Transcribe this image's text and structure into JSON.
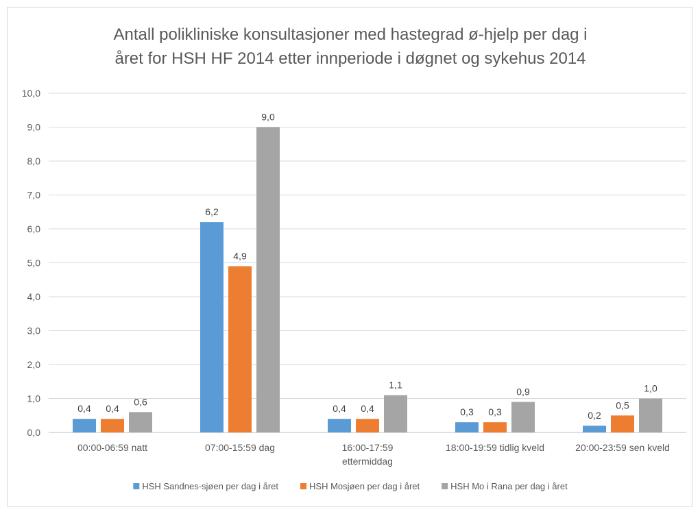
{
  "chart_data": {
    "type": "bar",
    "title_lines": [
      "Antall polikliniske konsultasjoner med hastegrad ø-hjelp per dag i",
      "året for HSH HF 2014 etter innperiode i døgnet og sykehus 2014"
    ],
    "categories": [
      [
        "00:00-06:59 natt"
      ],
      [
        "07:00-15:59 dag"
      ],
      [
        "16:00-17:59",
        "ettermiddag"
      ],
      [
        "18:00-19:59 tidlig kveld"
      ],
      [
        "20:00-23:59 sen kveld"
      ]
    ],
    "series": [
      {
        "name": "HSH Sandnes-sjøen per dag i året",
        "color": "#5b9bd5",
        "values": [
          0.4,
          6.2,
          0.4,
          0.3,
          0.2
        ],
        "labels": [
          "0,4",
          "6,2",
          "0,4",
          "0,3",
          "0,2"
        ]
      },
      {
        "name": "HSH Mosjøen per dag i året",
        "color": "#ed7d31",
        "values": [
          0.4,
          4.9,
          0.4,
          0.3,
          0.5
        ],
        "labels": [
          "0,4",
          "4,9",
          "0,4",
          "0,3",
          "0,5"
        ]
      },
      {
        "name": "HSH Mo i Rana per dag i året",
        "color": "#a5a5a5",
        "values": [
          0.6,
          9.0,
          1.1,
          0.9,
          1.0
        ],
        "labels": [
          "0,6",
          "9,0",
          "1,1",
          "0,9",
          "1,0"
        ]
      }
    ],
    "yticks": [
      {
        "value": 0,
        "label": "0,0"
      },
      {
        "value": 1,
        "label": "1,0"
      },
      {
        "value": 2,
        "label": "2,0"
      },
      {
        "value": 3,
        "label": "3,0"
      },
      {
        "value": 4,
        "label": "4,0"
      },
      {
        "value": 5,
        "label": "5,0"
      },
      {
        "value": 6,
        "label": "6,0"
      },
      {
        "value": 7,
        "label": "7,0"
      },
      {
        "value": 8,
        "label": "8,0"
      },
      {
        "value": 9,
        "label": "9,0"
      },
      {
        "value": 10,
        "label": "10,0"
      }
    ],
    "ylim": [
      0,
      10
    ],
    "grid": true,
    "legend_position": "bottom"
  }
}
